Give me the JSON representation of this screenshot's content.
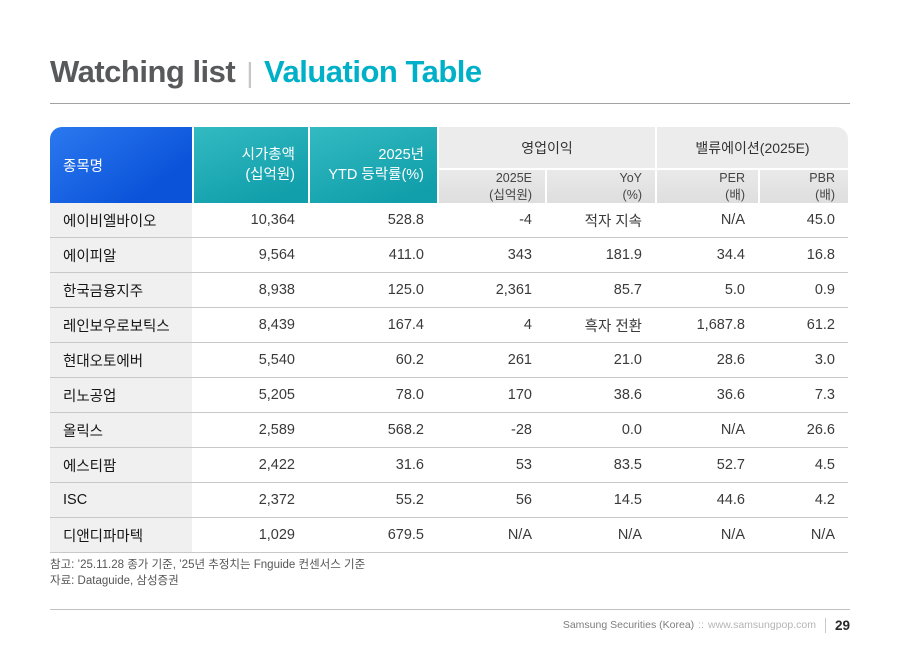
{
  "title": {
    "left": "Watching list",
    "separator": "|",
    "right": "Valuation Table"
  },
  "colors": {
    "title_gray": "#58595b",
    "title_cyan": "#00b0c8",
    "header_blue": "#0d5ce0",
    "header_teal": "#18a9b2",
    "header_gray": "#ececec",
    "name_cell_bg": "#f0f0f0"
  },
  "table": {
    "header": {
      "stock_name": "종목명",
      "market_cap": "시가총액\n(십억원)",
      "ytd_change": "2025년\nYTD 등락률(%)",
      "operating_profit_group": "영업이익",
      "valuation_group": "밸류에이션(2025E)",
      "op_2025e": "2025E\n(십억원)",
      "yoy": "YoY\n(%)",
      "per": "PER\n(배)",
      "pbr": "PBR\n(배)"
    },
    "rows": [
      {
        "name": "에이비엘바이오",
        "market_cap": "10,364",
        "ytd": "528.8",
        "op_2025e": "-4",
        "yoy": "적자 지속",
        "per": "N/A",
        "pbr": "45.0"
      },
      {
        "name": "에이피알",
        "market_cap": "9,564",
        "ytd": "411.0",
        "op_2025e": "343",
        "yoy": "181.9",
        "per": "34.4",
        "pbr": "16.8"
      },
      {
        "name": "한국금융지주",
        "market_cap": "8,938",
        "ytd": "125.0",
        "op_2025e": "2,361",
        "yoy": "85.7",
        "per": "5.0",
        "pbr": "0.9"
      },
      {
        "name": "레인보우로보틱스",
        "market_cap": "8,439",
        "ytd": "167.4",
        "op_2025e": "4",
        "yoy": "흑자 전환",
        "per": "1,687.8",
        "pbr": "61.2"
      },
      {
        "name": "현대오토에버",
        "market_cap": "5,540",
        "ytd": "60.2",
        "op_2025e": "261",
        "yoy": "21.0",
        "per": "28.6",
        "pbr": "3.0"
      },
      {
        "name": "리노공업",
        "market_cap": "5,205",
        "ytd": "78.0",
        "op_2025e": "170",
        "yoy": "38.6",
        "per": "36.6",
        "pbr": "7.3"
      },
      {
        "name": "올릭스",
        "market_cap": "2,589",
        "ytd": "568.2",
        "op_2025e": "-28",
        "yoy": "0.0",
        "per": "N/A",
        "pbr": "26.6"
      },
      {
        "name": "에스티팜",
        "market_cap": "2,422",
        "ytd": "31.6",
        "op_2025e": "53",
        "yoy": "83.5",
        "per": "52.7",
        "pbr": "4.5"
      },
      {
        "name": "ISC",
        "market_cap": "2,372",
        "ytd": "55.2",
        "op_2025e": "56",
        "yoy": "14.5",
        "per": "44.6",
        "pbr": "4.2"
      },
      {
        "name": "디앤디파마텍",
        "market_cap": "1,029",
        "ytd": "679.5",
        "op_2025e": "N/A",
        "yoy": "N/A",
        "per": "N/A",
        "pbr": "N/A"
      }
    ]
  },
  "notes": {
    "line1": "참고: ’25.11.28 종가 기준, ’25년 추정치는 Fnguide 컨센서스 기준",
    "line2": "자료: Dataguide, 삼성증권"
  },
  "footer": {
    "brand": "Samsung Securities (Korea)",
    "separator": "::",
    "url": "www.samsungpop.com",
    "page_number": "29"
  }
}
